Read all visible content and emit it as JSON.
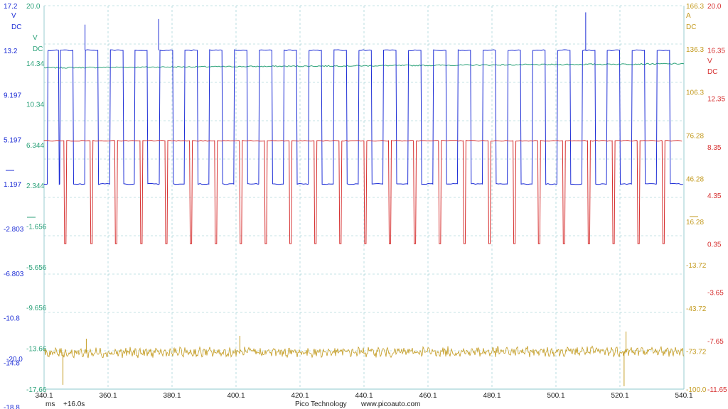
{
  "footer": {
    "x_unit": "ms",
    "time_offset": "+16.0s",
    "brand": "Pico Technology",
    "website": "www.picoauto.com"
  },
  "chart_data": {
    "type": "line",
    "x": {
      "label": "ms",
      "range": [
        340.1,
        540.1
      ],
      "ticks": [
        "340.1",
        "360.1",
        "380.1",
        "400.1",
        "420.1",
        "440.1",
        "460.1",
        "480.1",
        "500.1",
        "520.1",
        "540.1"
      ]
    },
    "grid": true,
    "axes": [
      {
        "id": "A",
        "side": "left",
        "color": "#1f2fd6",
        "unit": "V",
        "coupling": "DC",
        "range": [
          -17.2,
          17.2
        ],
        "tick_labels": [
          "17.2",
          "13.2",
          "9.197",
          "5.197",
          "1.197",
          "-2.803",
          "-6.803",
          "-10.8",
          "-14.8",
          "-18.8"
        ]
      },
      {
        "id": "B",
        "side": "left",
        "color": "#2ca27a",
        "unit": "V",
        "coupling": "DC",
        "range": [
          -17.66,
          20.0
        ],
        "tick_labels": [
          "20.0",
          "14.34",
          "10.34",
          "6.344",
          "2.344",
          "-1.656",
          "-5.656",
          "-9.656",
          "-13.66",
          "-17.66"
        ],
        "extra_label": "-20.0"
      },
      {
        "id": "C",
        "side": "right",
        "color": "#c39a1e",
        "unit": "A",
        "coupling": "DC",
        "range": [
          -100.0,
          166.3
        ],
        "tick_labels": [
          "166.3",
          "136.3",
          "106.3",
          "76.28",
          "46.28",
          "16.28",
          "-13.72",
          "-43.72",
          "-73.72",
          "-100.0"
        ]
      },
      {
        "id": "D",
        "side": "right",
        "color": "#d63030",
        "unit": "V",
        "coupling": "DC",
        "range": [
          -11.65,
          20.0
        ],
        "tick_labels": [
          "20.0",
          "16.35",
          "12.35",
          "8.35",
          "4.35",
          "0.35",
          "-3.65",
          "-7.65",
          "-11.65"
        ]
      }
    ],
    "series": [
      {
        "channel": "A",
        "color": "#1f2fd6",
        "waveform": "square",
        "high": 13.2,
        "low": 1.2,
        "pulse_starts_ms": [
          341.1,
          345.0,
          352.8,
          360.6,
          368.3,
          376.1,
          383.9,
          391.6,
          399.4,
          407.2,
          414.9,
          422.7,
          430.5,
          438.3,
          446.0,
          453.8,
          461.6,
          469.3,
          477.1,
          484.9,
          492.6,
          500.4,
          508.2,
          515.9,
          523.7,
          531.5
        ],
        "pulse_ends_ms": [
          344.6,
          349.1,
          356.9,
          364.8,
          372.3,
          380.3,
          388.0,
          395.7,
          403.5,
          411.3,
          419.0,
          426.8,
          434.6,
          442.4,
          450.1,
          457.9,
          465.7,
          473.4,
          481.2,
          489.0,
          496.7,
          504.5,
          512.3,
          520.0,
          527.8,
          535.6
        ],
        "spikes": [
          [
            352.9,
            15.5
          ],
          [
            375.9,
            16.0
          ],
          [
            509.4,
            16.6
          ]
        ]
      },
      {
        "channel": "B",
        "color": "#2ca27a",
        "waveform": "flat",
        "start_value": 13.9,
        "end_value": 14.3
      },
      {
        "channel": "D",
        "color": "#d63030",
        "waveform": "dips",
        "baseline": 8.85,
        "dip_value": 0.35,
        "dip_ms": [
          346.5,
          354.7,
          362.4,
          370.3,
          378.1,
          385.8,
          393.6,
          401.4,
          409.2,
          416.9,
          424.7,
          432.5,
          440.3,
          448.0,
          455.8,
          463.6,
          471.3,
          479.1,
          486.9,
          494.6,
          502.4,
          510.2,
          517.9,
          525.7,
          533.5
        ]
      },
      {
        "channel": "C",
        "color": "#c39a1e",
        "waveform": "noise",
        "start_value": -74.8,
        "end_value": -73.7,
        "spikes": [
          [
            346.0,
            -97.0
          ],
          [
            353.3,
            -65.0
          ],
          [
            401.3,
            -63.0
          ],
          [
            521.4,
            -98.0
          ],
          [
            522.0,
            -60.0
          ]
        ]
      }
    ]
  }
}
